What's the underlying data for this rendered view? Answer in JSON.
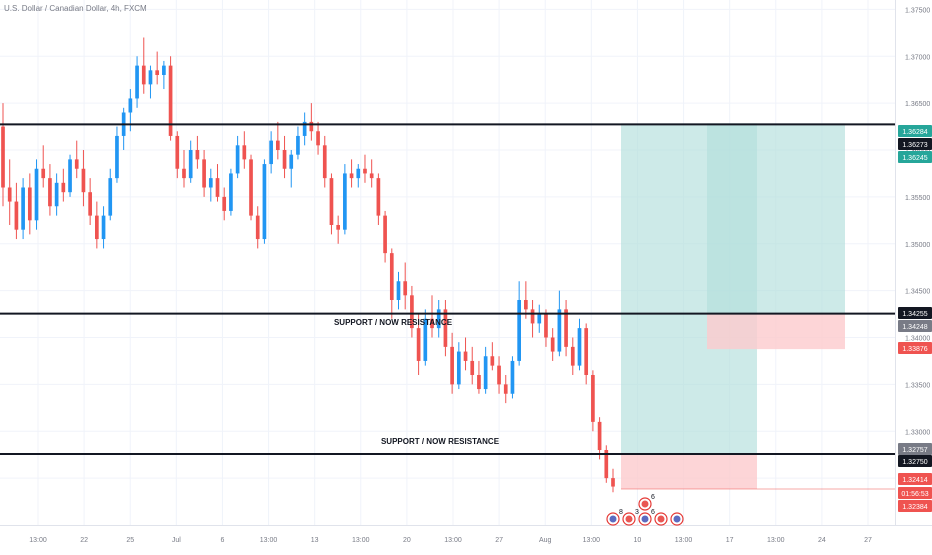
{
  "title": "U.S. Dollar / Canadian Dollar, 4h, FXCM",
  "labels": {
    "support1": "SUPPORT / NOW RESISTANCE",
    "support2": "SUPPORT / NOW RESISTANCE"
  },
  "colors": {
    "up": "#2196f3",
    "down": "#ef5350",
    "profit_zone": "#b2dfdb",
    "profit_zone_dark": "#80cbc4",
    "loss_zone": "#fccbcd",
    "level_line": "#131722",
    "axis_text": "#787b86",
    "price_badge_dark": "#131722",
    "price_badge_teal": "#26a69a",
    "price_badge_red": "#ef5350",
    "price_badge_gray": "#787b86"
  },
  "chart_data": {
    "type": "candlestick",
    "symbol": "USD/CAD",
    "timeframe": "4h",
    "ylim": [
      1.32,
      1.376
    ],
    "y_ticks": [
      "1.37500",
      "1.37000",
      "1.36500",
      "1.36000",
      "1.35500",
      "1.35000",
      "1.34500",
      "1.34000",
      "1.33500",
      "1.33000",
      "1.32500"
    ],
    "x_ticks": [
      "13:00",
      "22",
      "25",
      "Jul",
      "6",
      "13:00",
      "13",
      "13:00",
      "20",
      "13:00",
      "27",
      "Aug",
      "13:00",
      "10",
      "13:00",
      "17",
      "13:00",
      "24",
      "27"
    ],
    "horizontal_levels": [
      {
        "price": 1.36273,
        "label": ""
      },
      {
        "price": 1.34255,
        "label": "SUPPORT / NOW RESISTANCE"
      },
      {
        "price": 1.32757,
        "label": "SUPPORT / NOW RESISTANCE"
      }
    ],
    "price_badges": [
      {
        "text": "1.36284",
        "color": "teal"
      },
      {
        "text": "1.36273",
        "color": "dark"
      },
      {
        "text": "1.36245",
        "color": "teal"
      },
      {
        "text": "1.34255",
        "color": "dark"
      },
      {
        "text": "1.34248",
        "color": "gray"
      },
      {
        "text": "1.33876",
        "color": "red"
      },
      {
        "text": "1.32757",
        "color": "gray"
      },
      {
        "text": "1.32750",
        "color": "dark"
      },
      {
        "text": "1.32414",
        "color": "red"
      },
      {
        "text": "01:56:53",
        "color": "red"
      },
      {
        "text": "1.32384",
        "color": "red"
      }
    ],
    "positions": [
      {
        "side": "short",
        "entry": 1.32757,
        "target": 1.36284,
        "stop": 1.32384
      },
      {
        "side": "long",
        "entry": 1.34248,
        "target": 1.36284,
        "stop": 1.33876
      }
    ],
    "events": [
      {
        "flag": "US",
        "count": "8"
      },
      {
        "flag": "CA",
        "count": "3"
      },
      {
        "flag": "US",
        "count": "6"
      },
      {
        "flag": "CA",
        "count": ""
      },
      {
        "flag": "US",
        "count": ""
      },
      {
        "flag": "CA",
        "count": "6"
      }
    ],
    "candles": [
      [
        1.3625,
        1.365,
        1.354,
        1.356
      ],
      [
        1.356,
        1.359,
        1.352,
        1.3545
      ],
      [
        1.3545,
        1.3565,
        1.3505,
        1.3515
      ],
      [
        1.3515,
        1.357,
        1.3505,
        1.356
      ],
      [
        1.356,
        1.3575,
        1.351,
        1.3525
      ],
      [
        1.3525,
        1.359,
        1.3515,
        1.358
      ],
      [
        1.358,
        1.3605,
        1.356,
        1.357
      ],
      [
        1.357,
        1.3585,
        1.353,
        1.354
      ],
      [
        1.354,
        1.3575,
        1.353,
        1.3565
      ],
      [
        1.3565,
        1.358,
        1.3545,
        1.3555
      ],
      [
        1.3555,
        1.3595,
        1.355,
        1.359
      ],
      [
        1.359,
        1.361,
        1.357,
        1.358
      ],
      [
        1.358,
        1.36,
        1.354,
        1.3555
      ],
      [
        1.3555,
        1.357,
        1.352,
        1.353
      ],
      [
        1.353,
        1.3545,
        1.3495,
        1.3505
      ],
      [
        1.3505,
        1.354,
        1.3495,
        1.353
      ],
      [
        1.353,
        1.358,
        1.3525,
        1.357
      ],
      [
        1.357,
        1.3625,
        1.3565,
        1.3615
      ],
      [
        1.3615,
        1.3645,
        1.36,
        1.364
      ],
      [
        1.364,
        1.3665,
        1.362,
        1.3655
      ],
      [
        1.3655,
        1.37,
        1.3645,
        1.369
      ],
      [
        1.369,
        1.372,
        1.366,
        1.367
      ],
      [
        1.367,
        1.369,
        1.3655,
        1.3685
      ],
      [
        1.3685,
        1.3705,
        1.367,
        1.368
      ],
      [
        1.368,
        1.3695,
        1.3665,
        1.369
      ],
      [
        1.369,
        1.37,
        1.361,
        1.3615
      ],
      [
        1.3615,
        1.362,
        1.357,
        1.358
      ],
      [
        1.358,
        1.36,
        1.356,
        1.357
      ],
      [
        1.357,
        1.361,
        1.3565,
        1.36
      ],
      [
        1.36,
        1.3615,
        1.358,
        1.359
      ],
      [
        1.359,
        1.36,
        1.355,
        1.356
      ],
      [
        1.356,
        1.358,
        1.3545,
        1.357
      ],
      [
        1.357,
        1.3585,
        1.3545,
        1.355
      ],
      [
        1.355,
        1.356,
        1.3525,
        1.3535
      ],
      [
        1.3535,
        1.358,
        1.353,
        1.3575
      ],
      [
        1.3575,
        1.3615,
        1.357,
        1.3605
      ],
      [
        1.3605,
        1.362,
        1.358,
        1.359
      ],
      [
        1.359,
        1.3595,
        1.3525,
        1.353
      ],
      [
        1.353,
        1.354,
        1.3495,
        1.3505
      ],
      [
        1.3505,
        1.359,
        1.35,
        1.3585
      ],
      [
        1.3585,
        1.362,
        1.3575,
        1.361
      ],
      [
        1.361,
        1.363,
        1.359,
        1.36
      ],
      [
        1.36,
        1.3615,
        1.357,
        1.358
      ],
      [
        1.358,
        1.36,
        1.356,
        1.3595
      ],
      [
        1.3595,
        1.3625,
        1.359,
        1.3615
      ],
      [
        1.3615,
        1.364,
        1.3605,
        1.363
      ],
      [
        1.363,
        1.365,
        1.361,
        1.362
      ],
      [
        1.362,
        1.363,
        1.3595,
        1.3605
      ],
      [
        1.3605,
        1.3615,
        1.356,
        1.357
      ],
      [
        1.357,
        1.3575,
        1.351,
        1.352
      ],
      [
        1.352,
        1.353,
        1.35,
        1.3515
      ],
      [
        1.3515,
        1.3585,
        1.351,
        1.3575
      ],
      [
        1.3575,
        1.359,
        1.356,
        1.357
      ],
      [
        1.357,
        1.3585,
        1.356,
        1.358
      ],
      [
        1.358,
        1.3595,
        1.3565,
        1.3575
      ],
      [
        1.3575,
        1.359,
        1.356,
        1.357
      ],
      [
        1.357,
        1.3575,
        1.352,
        1.353
      ],
      [
        1.353,
        1.3535,
        1.348,
        1.349
      ],
      [
        1.349,
        1.3495,
        1.342,
        1.344
      ],
      [
        1.344,
        1.347,
        1.343,
        1.346
      ],
      [
        1.346,
        1.348,
        1.343,
        1.3445
      ],
      [
        1.3445,
        1.3455,
        1.34,
        1.341
      ],
      [
        1.341,
        1.3425,
        1.336,
        1.3375
      ],
      [
        1.3375,
        1.343,
        1.337,
        1.342
      ],
      [
        1.342,
        1.3445,
        1.34,
        1.341
      ],
      [
        1.341,
        1.344,
        1.34,
        1.343
      ],
      [
        1.343,
        1.344,
        1.338,
        1.339
      ],
      [
        1.339,
        1.3405,
        1.334,
        1.335
      ],
      [
        1.335,
        1.3395,
        1.3345,
        1.3385
      ],
      [
        1.3385,
        1.34,
        1.3365,
        1.3375
      ],
      [
        1.3375,
        1.339,
        1.335,
        1.336
      ],
      [
        1.336,
        1.3375,
        1.334,
        1.3345
      ],
      [
        1.3345,
        1.339,
        1.334,
        1.338
      ],
      [
        1.338,
        1.3395,
        1.3365,
        1.337
      ],
      [
        1.337,
        1.338,
        1.334,
        1.335
      ],
      [
        1.335,
        1.336,
        1.333,
        1.334
      ],
      [
        1.334,
        1.338,
        1.3335,
        1.3375
      ],
      [
        1.3375,
        1.346,
        1.337,
        1.344
      ],
      [
        1.344,
        1.346,
        1.342,
        1.343
      ],
      [
        1.343,
        1.344,
        1.34,
        1.3415
      ],
      [
        1.3415,
        1.3435,
        1.3405,
        1.3425
      ],
      [
        1.3425,
        1.343,
        1.339,
        1.34
      ],
      [
        1.34,
        1.341,
        1.3375,
        1.3385
      ],
      [
        1.3385,
        1.345,
        1.338,
        1.343
      ],
      [
        1.343,
        1.344,
        1.338,
        1.339
      ],
      [
        1.339,
        1.34,
        1.336,
        1.337
      ],
      [
        1.337,
        1.342,
        1.3365,
        1.341
      ],
      [
        1.341,
        1.3415,
        1.335,
        1.336
      ],
      [
        1.336,
        1.3365,
        1.33,
        1.331
      ],
      [
        1.331,
        1.3315,
        1.327,
        1.328
      ],
      [
        1.328,
        1.3285,
        1.3245,
        1.325
      ],
      [
        1.325,
        1.326,
        1.3235,
        1.3241
      ]
    ]
  }
}
